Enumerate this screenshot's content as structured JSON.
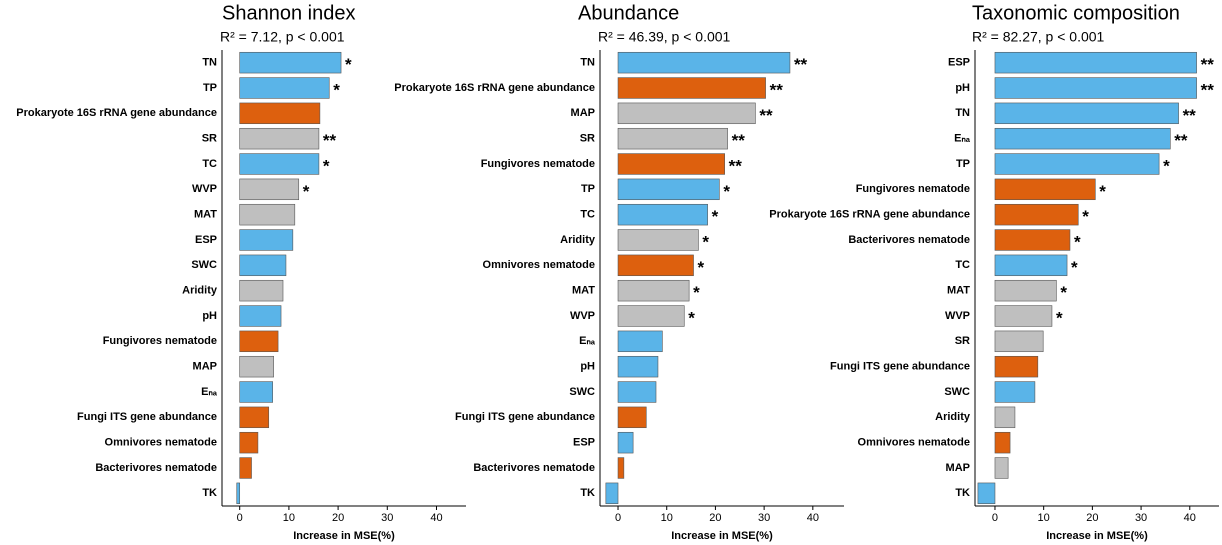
{
  "chart_data": [
    {
      "type": "bar",
      "orientation": "horizontal",
      "title": "Shannon index",
      "subtitle": "R² = 7.12, p < 0.001",
      "categories": [
        "TN",
        "TP",
        "Prokaryote 16S rRNA gene abundance",
        "SR",
        "TC",
        "WVP",
        "MAT",
        "ESP",
        "SWC",
        "Aridity",
        "pH",
        "Fungivores nematode",
        "MAP",
        "Eₙₐ",
        "Fungi ITS gene abundance",
        "Omnivores nematode",
        "Bacterivores nematode",
        "TK"
      ],
      "values": [
        20.6,
        18.2,
        16.3,
        16.1,
        16.1,
        12.0,
        11.2,
        10.8,
        9.4,
        8.8,
        8.4,
        7.8,
        6.9,
        6.7,
        5.9,
        3.7,
        2.4,
        -0.6
      ],
      "colors": [
        "#5ab4e8",
        "#5ab4e8",
        "#dd600e",
        "#bfbfbf",
        "#5ab4e8",
        "#bfbfbf",
        "#bfbfbf",
        "#5ab4e8",
        "#5ab4e8",
        "#bfbfbf",
        "#5ab4e8",
        "#dd600e",
        "#bfbfbf",
        "#5ab4e8",
        "#dd600e",
        "#dd600e",
        "#dd600e",
        "#5ab4e8"
      ],
      "annotations": [
        "*",
        "*",
        null,
        "**",
        "*",
        "*",
        null,
        null,
        null,
        null,
        null,
        null,
        null,
        null,
        null,
        null,
        null,
        null
      ],
      "xlabel": "Increase in MSE(%)",
      "xlim": [
        -3.6,
        46
      ],
      "xticks": [
        0,
        10,
        20,
        30,
        40
      ]
    },
    {
      "type": "bar",
      "orientation": "horizontal",
      "title": "Abundance",
      "subtitle": "R² = 46.39, p < 0.001",
      "categories": [
        "TN",
        "Prokaryote 16S rRNA gene abundance",
        "MAP",
        "SR",
        "Fungivores nematode",
        "TP",
        "TC",
        "Aridity",
        "Omnivores nematode",
        "MAT",
        "WVP",
        "Eₙₐ",
        "pH",
        "SWC",
        "Fungi ITS gene abundance",
        "ESP",
        "Bacterivores nematode",
        "TK"
      ],
      "values": [
        35.3,
        30.3,
        28.2,
        22.5,
        21.9,
        20.8,
        18.4,
        16.5,
        15.5,
        14.6,
        13.6,
        9.1,
        8.2,
        7.8,
        5.8,
        3.1,
        1.2,
        -2.5
      ],
      "colors": [
        "#5ab4e8",
        "#dd600e",
        "#bfbfbf",
        "#bfbfbf",
        "#dd600e",
        "#5ab4e8",
        "#5ab4e8",
        "#bfbfbf",
        "#dd600e",
        "#bfbfbf",
        "#bfbfbf",
        "#5ab4e8",
        "#5ab4e8",
        "#5ab4e8",
        "#dd600e",
        "#5ab4e8",
        "#dd600e",
        "#5ab4e8"
      ],
      "annotations": [
        "**",
        "**",
        "**",
        "**",
        "**",
        "*",
        "*",
        "*",
        "*",
        "*",
        "*",
        null,
        null,
        null,
        null,
        null,
        null,
        null
      ],
      "xlabel": "Increase in MSE(%)",
      "xlim": [
        -3.7,
        46.4
      ],
      "xticks": [
        0,
        10,
        20,
        30,
        40
      ]
    },
    {
      "type": "bar",
      "orientation": "horizontal",
      "title": "Taxonomic composition",
      "subtitle": "R² = 82.27, p < 0.001",
      "categories": [
        "ESP",
        "pH",
        "TN",
        "Eₙₐ",
        "TP",
        "Fungivores nematode",
        "Prokaryote 16S rRNA gene abundance",
        "Bacterivores nematode",
        "TC",
        "MAT",
        "WVP",
        "SR",
        "Fungi ITS gene abundance",
        "SWC",
        "Aridity",
        "Omnivores nematode",
        "MAP",
        "TK"
      ],
      "values": [
        41.4,
        41.4,
        37.7,
        36.0,
        33.7,
        20.6,
        17.1,
        15.4,
        14.8,
        12.6,
        11.7,
        9.9,
        8.8,
        8.2,
        4.1,
        3.1,
        2.7,
        -3.5
      ],
      "colors": [
        "#5ab4e8",
        "#5ab4e8",
        "#5ab4e8",
        "#5ab4e8",
        "#5ab4e8",
        "#dd600e",
        "#dd600e",
        "#dd600e",
        "#5ab4e8",
        "#bfbfbf",
        "#bfbfbf",
        "#bfbfbf",
        "#dd600e",
        "#5ab4e8",
        "#bfbfbf",
        "#dd600e",
        "#bfbfbf",
        "#5ab4e8"
      ],
      "annotations": [
        "**",
        "**",
        "**",
        "**",
        "*",
        "*",
        "*",
        "*",
        "*",
        "*",
        "*",
        null,
        null,
        null,
        null,
        null,
        null,
        null
      ],
      "xlabel": "Increase in MSE(%)",
      "xlim": [
        -4.1,
        46
      ],
      "xticks": [
        0,
        10,
        20,
        30,
        40
      ]
    }
  ]
}
